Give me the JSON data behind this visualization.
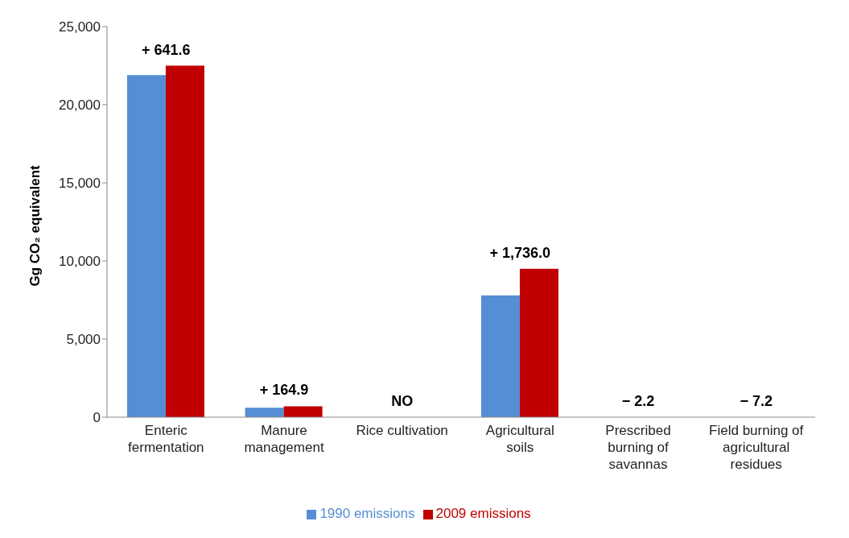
{
  "chart_data": {
    "type": "bar",
    "ylabel": "Gg CO₂ equivalent",
    "categories": [
      "Enteric fermentation",
      "Manure management",
      "Rice cultivation",
      "Agricultural soils",
      "Prescribed burning of savannas",
      "Field burning of agricultural residues"
    ],
    "series": [
      {
        "name": "1990 emissions",
        "color": "#558ed5",
        "values": [
          21900,
          600,
          null,
          7800,
          null,
          null
        ]
      },
      {
        "name": "2009 emissions",
        "color": "#c00000",
        "values": [
          22500,
          700,
          null,
          9500,
          null,
          null
        ]
      }
    ],
    "ylim": [
      0,
      25000
    ],
    "yticks": [
      {
        "value": 0,
        "label": "0"
      },
      {
        "value": 5000,
        "label": "5,000"
      },
      {
        "value": 10000,
        "label": "10,000"
      },
      {
        "value": 15000,
        "label": "15,000"
      },
      {
        "value": 20000,
        "label": "20,000"
      },
      {
        "value": 25000,
        "label": "25,000"
      }
    ],
    "annotations": [
      "+ 641.6",
      "+ 164.9",
      "NO",
      "+ 1,736.0",
      "− 2.2",
      "− 7.2"
    ],
    "grid": false,
    "legend": "bottom"
  }
}
